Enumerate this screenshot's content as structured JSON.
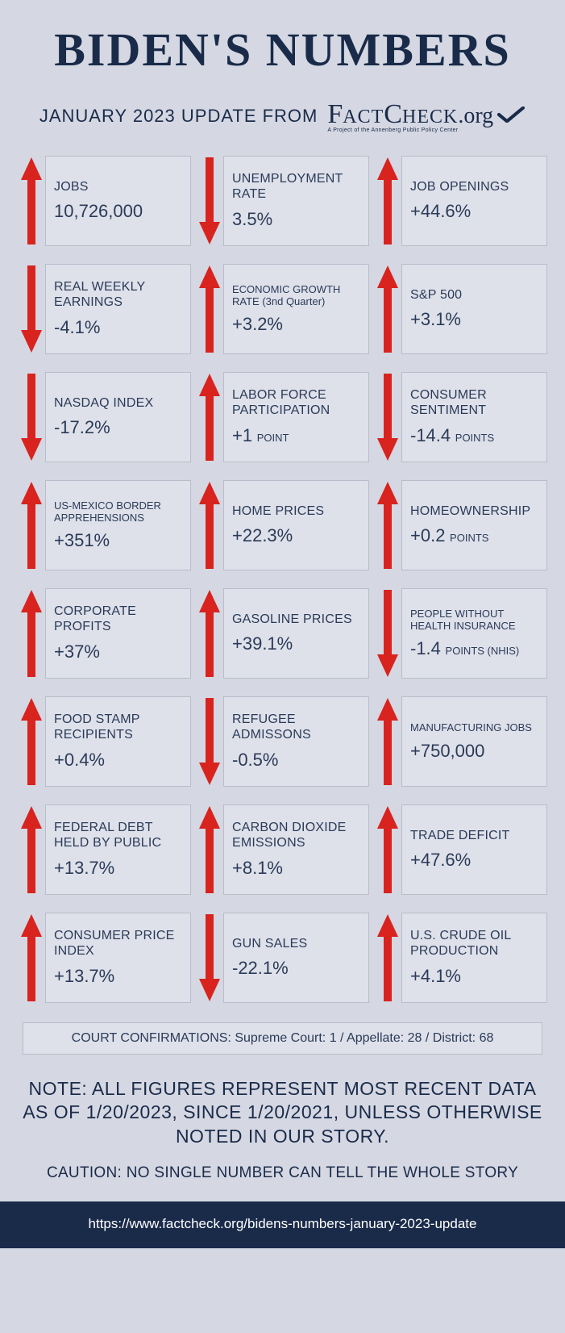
{
  "colors": {
    "background": "#d5d8e2",
    "card_bg": "#dee1ea",
    "card_border": "#b9bdc9",
    "text": "#1a2b4a",
    "arrow": "#d8231f",
    "footer_bg": "#1a2b4a",
    "footer_text": "#ffffff"
  },
  "title": "BIDEN'S NUMBERS",
  "subheader": {
    "update": "JANUARY 2023 UPDATE  FROM",
    "logo_main": "FactCheck.org",
    "logo_sub": "A Project of the Annenberg Public Policy Center"
  },
  "cards": [
    {
      "label": "JOBS",
      "value": "10,726,000",
      "dir": "up",
      "small": false,
      "unit": ""
    },
    {
      "label": "UNEMPLOYMENT RATE",
      "value": "3.5%",
      "dir": "down",
      "small": false,
      "unit": ""
    },
    {
      "label": "JOB OPENINGS",
      "value": "+44.6%",
      "dir": "up",
      "small": false,
      "unit": ""
    },
    {
      "label": "REAL WEEKLY EARNINGS",
      "value": "-4.1%",
      "dir": "down",
      "small": false,
      "unit": ""
    },
    {
      "label": "ECONOMIC GROWTH RATE (3nd Quarter)",
      "value": "+3.2%",
      "dir": "up",
      "small": true,
      "unit": ""
    },
    {
      "label": "S&P 500",
      "value": "+3.1%",
      "dir": "up",
      "small": false,
      "unit": ""
    },
    {
      "label": "NASDAQ INDEX",
      "value": "-17.2%",
      "dir": "down",
      "small": false,
      "unit": ""
    },
    {
      "label": "LABOR FORCE PARTICIPATION",
      "value": "+1",
      "dir": "up",
      "small": false,
      "unit": "POINT"
    },
    {
      "label": "CONSUMER SENTIMENT",
      "value": "-14.4",
      "dir": "down",
      "small": false,
      "unit": "POINTS"
    },
    {
      "label": "US-MEXICO BORDER APPREHENSIONS",
      "value": "+351%",
      "dir": "up",
      "small": true,
      "unit": ""
    },
    {
      "label": "HOME PRICES",
      "value": "+22.3%",
      "dir": "up",
      "small": false,
      "unit": ""
    },
    {
      "label": "HOMEOWNERSHIP",
      "value": "+0.2",
      "dir": "up",
      "small": false,
      "unit": "POINTS"
    },
    {
      "label": "CORPORATE PROFITS",
      "value": "+37%",
      "dir": "up",
      "small": false,
      "unit": ""
    },
    {
      "label": "GASOLINE PRICES",
      "value": "+39.1%",
      "dir": "up",
      "small": false,
      "unit": ""
    },
    {
      "label": "PEOPLE WITHOUT HEALTH INSURANCE",
      "value": "-1.4",
      "dir": "down",
      "small": true,
      "unit": "POINTS (NHIS)"
    },
    {
      "label": "FOOD STAMP RECIPIENTS",
      "value": "+0.4%",
      "dir": "up",
      "small": false,
      "unit": ""
    },
    {
      "label": "REFUGEE ADMISSONS",
      "value": "-0.5%",
      "dir": "down",
      "small": false,
      "unit": ""
    },
    {
      "label": "MANUFACTURING JOBS",
      "value": "+750,000",
      "dir": "up",
      "small": true,
      "unit": ""
    },
    {
      "label": "FEDERAL DEBT HELD BY PUBLIC",
      "value": "+13.7%",
      "dir": "up",
      "small": false,
      "unit": ""
    },
    {
      "label": "CARBON DIOXIDE EMISSIONS",
      "value": "+8.1%",
      "dir": "up",
      "small": false,
      "unit": ""
    },
    {
      "label": "TRADE DEFICIT",
      "value": "+47.6%",
      "dir": "up",
      "small": false,
      "unit": ""
    },
    {
      "label": "CONSUMER PRICE INDEX",
      "value": "+13.7%",
      "dir": "up",
      "small": false,
      "unit": ""
    },
    {
      "label": "GUN SALES",
      "value": "-22.1%",
      "dir": "down",
      "small": false,
      "unit": ""
    },
    {
      "label": "U.S. CRUDE OIL PRODUCTION",
      "value": "+4.1%",
      "dir": "up",
      "small": false,
      "unit": ""
    }
  ],
  "court": "COURT CONFIRMATIONS:  Supreme Court: 1 / Appellate: 28 / District: 68",
  "note": "NOTE:  ALL FIGURES REPRESENT MOST RECENT DATA AS OF 1/20/2023, SINCE 1/20/2021, UNLESS OTHERWISE NOTED IN OUR STORY.",
  "caution": "CAUTION: NO SINGLE NUMBER CAN TELL THE WHOLE STORY",
  "footer_url": "https://www.factcheck.org/bidens-numbers-january-2023-update"
}
